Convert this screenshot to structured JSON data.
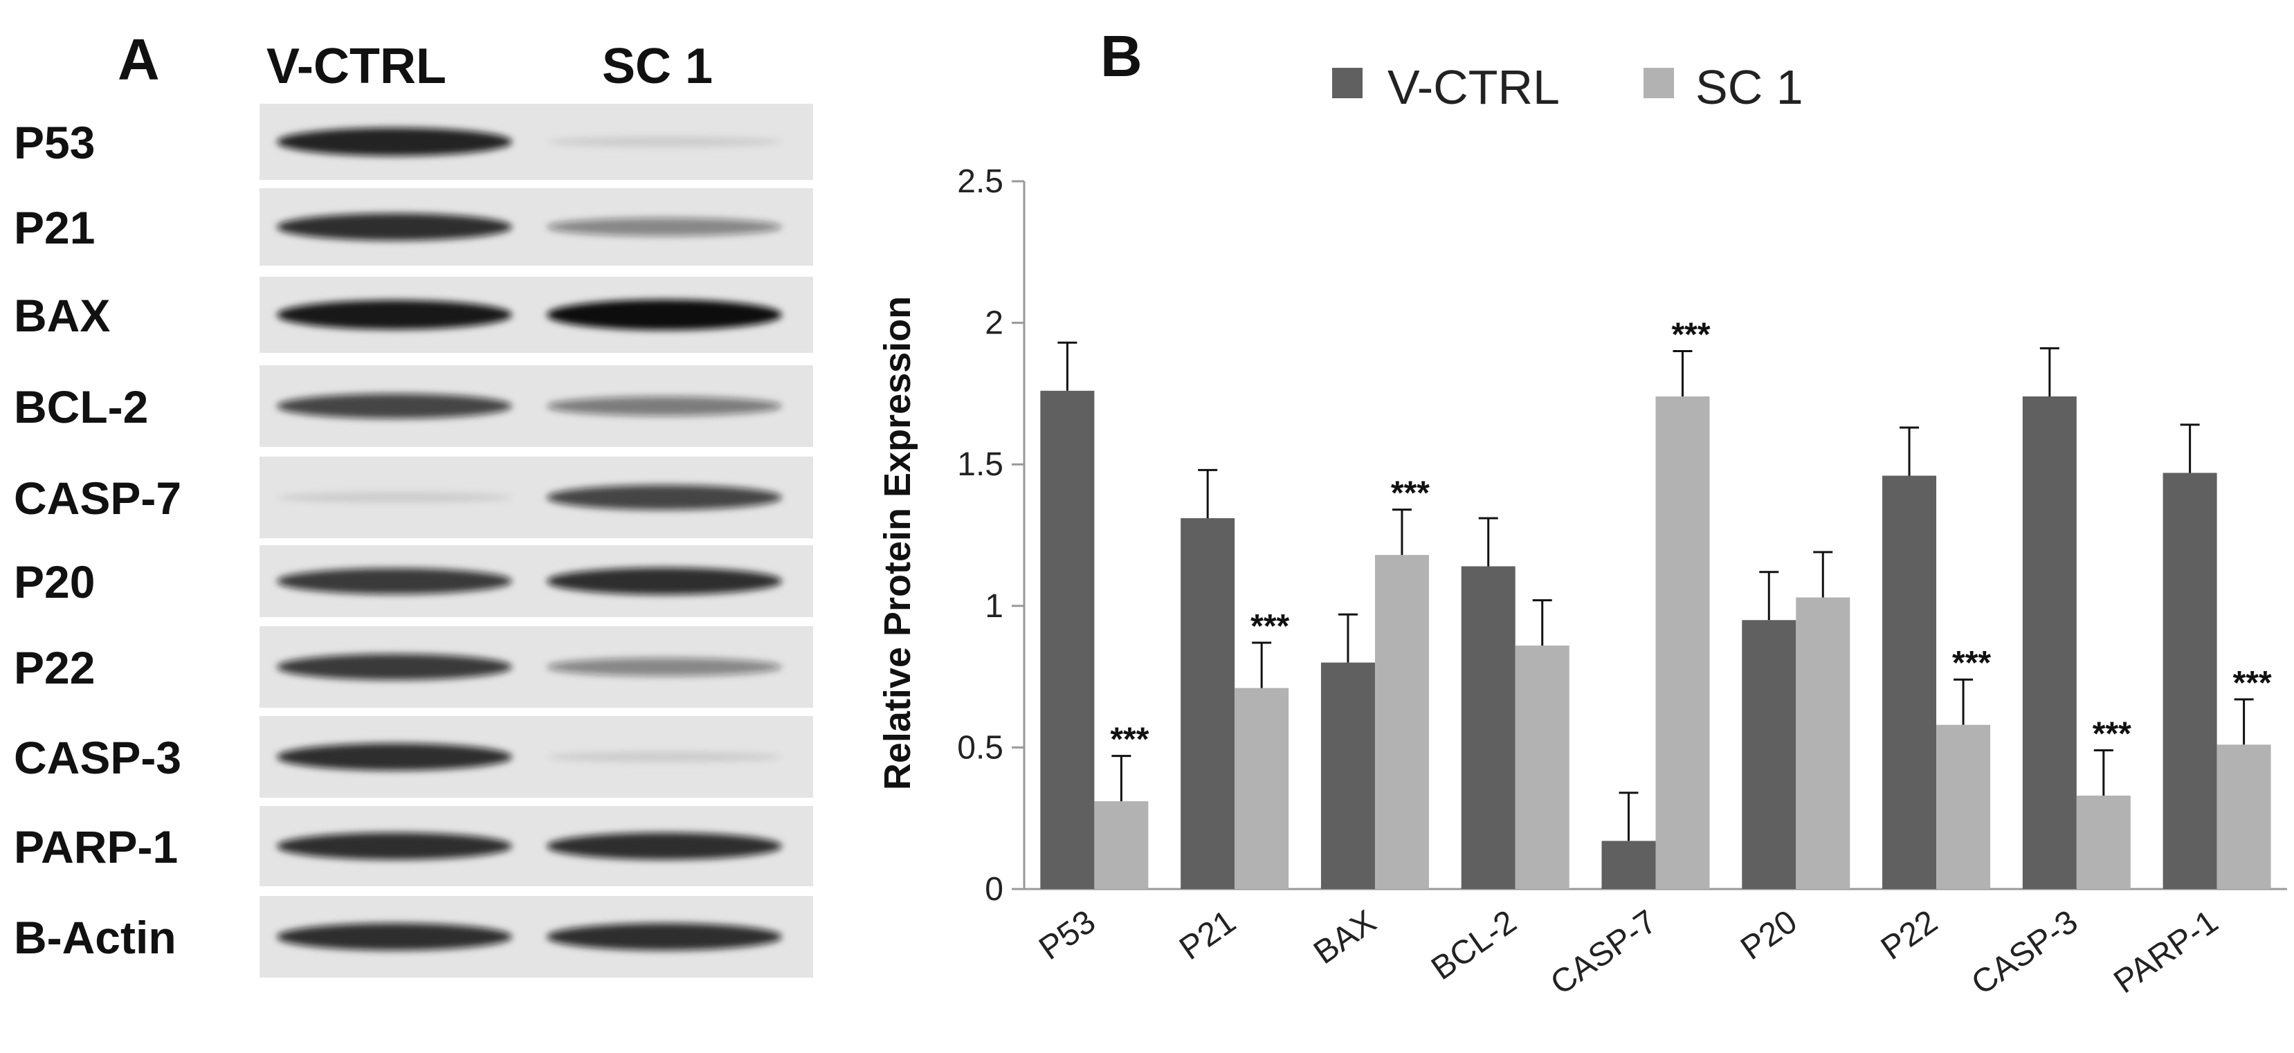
{
  "panel_a": {
    "letter": "A",
    "lanes": [
      "V-CTRL",
      "SC 1"
    ],
    "rows": [
      {
        "label": "P53",
        "band_left": 0.9,
        "band_right": 0.1
      },
      {
        "label": "P21",
        "band_left": 0.85,
        "band_right": 0.45
      },
      {
        "label": "BAX",
        "band_left": 0.95,
        "band_right": 1.0
      },
      {
        "label": "BCL-2",
        "band_left": 0.75,
        "band_right": 0.5
      },
      {
        "label": "CASP-7",
        "band_left": 0.1,
        "band_right": 0.75
      },
      {
        "label": "P20",
        "band_left": 0.8,
        "band_right": 0.85
      },
      {
        "label": "P22",
        "band_left": 0.8,
        "band_right": 0.45
      },
      {
        "label": "CASP-3",
        "band_left": 0.85,
        "band_right": 0.1
      },
      {
        "label": "PARP-1",
        "band_left": 0.85,
        "band_right": 0.85
      },
      {
        "label": "B-Actin",
        "band_left": 0.85,
        "band_right": 0.85
      }
    ]
  },
  "panel_b": {
    "letter": "B"
  },
  "chart_data": {
    "type": "bar",
    "title": "",
    "xlabel": "",
    "ylabel": "Relative Protein Expression",
    "ylim": [
      0,
      2.5
    ],
    "yticks": [
      "0",
      "0.5",
      "1",
      "1.5",
      "2",
      "2.5"
    ],
    "ytick_values": [
      0,
      0.5,
      1,
      1.5,
      2,
      2.5
    ],
    "legend_position": "top",
    "categories": [
      "P53",
      "P21",
      "BAX",
      "BCL-2",
      "CASP-7",
      "P20",
      "P22",
      "CASP-3",
      "PARP-1"
    ],
    "series": [
      {
        "name": "V-CTRL",
        "color": "#606060",
        "values": [
          1.76,
          1.31,
          0.8,
          1.14,
          0.17,
          0.95,
          1.46,
          1.74,
          1.47
        ],
        "errors": [
          0.17,
          0.17,
          0.17,
          0.17,
          0.17,
          0.17,
          0.17,
          0.17,
          0.17
        ],
        "significance": [
          "",
          "",
          "",
          "",
          "",
          "",
          "",
          "",
          ""
        ]
      },
      {
        "name": "SC 1",
        "color": "#b2b2b2",
        "values": [
          0.31,
          0.71,
          1.18,
          0.86,
          1.74,
          1.03,
          0.58,
          0.33,
          0.51
        ],
        "errors": [
          0.16,
          0.16,
          0.16,
          0.16,
          0.16,
          0.16,
          0.16,
          0.16,
          0.16
        ],
        "significance": [
          "***",
          "***",
          "***",
          "",
          "***",
          "",
          "***",
          "***",
          "***"
        ]
      }
    ],
    "grid": false
  }
}
